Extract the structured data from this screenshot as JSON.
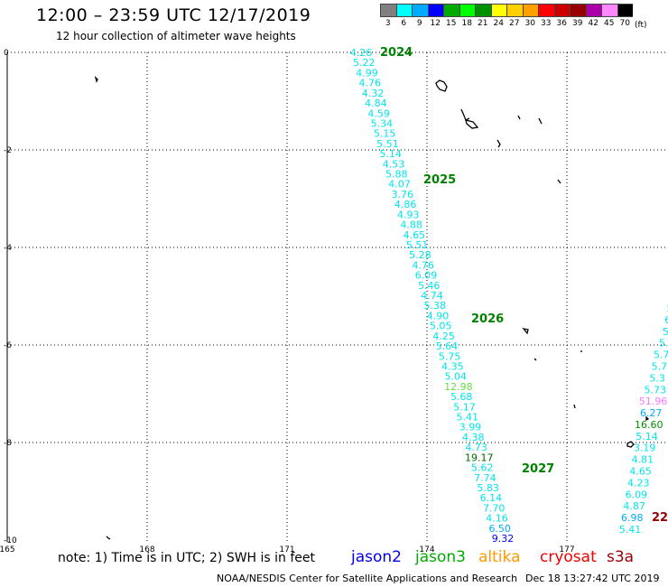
{
  "header": {
    "title": "12:00 – 23:59 UTC 12/17/2019",
    "subtitle": "12 hour collection of altimeter wave heights"
  },
  "legend": {
    "colors": [
      "#808080",
      "#00ffff",
      "#00aaff",
      "#0000ff",
      "#00aa00",
      "#00ff00",
      "#009000",
      "#ffff00",
      "#ffd000",
      "#ffa000",
      "#ff0000",
      "#cc0000",
      "#990000",
      "#aa00aa",
      "#ff88ff",
      "#000000"
    ],
    "labels": [
      "3",
      "6",
      "9",
      "12",
      "15",
      "18",
      "21",
      "24",
      "27",
      "30",
      "33",
      "36",
      "39",
      "42",
      "45",
      "70"
    ],
    "unit": "(ft)"
  },
  "axes": {
    "x_ticks": [
      "165",
      "168",
      "171",
      "174",
      "177"
    ],
    "y_ticks": [
      "0",
      "-2",
      "-4",
      "-6",
      "-8",
      "-10"
    ]
  },
  "tracks": {
    "main_values": [
      "4.26",
      "5.22",
      "4.99",
      "4.76",
      "4.32",
      "4.84",
      "4.59",
      "5.34",
      "5.15",
      "5.51",
      "5.14",
      "4.53",
      "5.88",
      "4.07",
      "3.76",
      "4.86",
      "4.93",
      "4.88",
      "4.65",
      "5.51",
      "5.28",
      "4.76",
      "6.09",
      "5.46",
      "4.74",
      "5.38",
      "4.90",
      "5.05",
      "4.25",
      "5.64",
      "5.75",
      "4.35",
      "5.04",
      "12.98",
      "5.68",
      "5.17",
      "5.41",
      "3.99",
      "4.38",
      "4.73",
      "19.17",
      "5.62",
      "7.74",
      "5.83",
      "6.14",
      "7.70",
      "4.16",
      "6.50",
      "9.32"
    ],
    "main_colors": [
      "#00e5ee",
      "#00e5ee",
      "#00e5ee",
      "#00e5ee",
      "#00e5ee",
      "#00e5ee",
      "#00e5ee",
      "#00e5ee",
      "#00e5ee",
      "#00e5ee",
      "#00e5ee",
      "#00e5ee",
      "#00e5ee",
      "#00e5ee",
      "#00e5ee",
      "#00e5ee",
      "#00e5ee",
      "#00e5ee",
      "#00e5ee",
      "#00e5ee",
      "#00e5ee",
      "#00e5ee",
      "#00e5ee",
      "#00e5ee",
      "#00e5ee",
      "#00e5ee",
      "#00e5ee",
      "#00e5ee",
      "#00e5ee",
      "#00e5ee",
      "#00e5ee",
      "#00e5ee",
      "#00e5ee",
      "#66dd44",
      "#00e5ee",
      "#00e5ee",
      "#00e5ee",
      "#00e5ee",
      "#00e5ee",
      "#00e5ee",
      "#006600",
      "#00e5ee",
      "#00e5ee",
      "#00e5ee",
      "#00e5ee",
      "#00e5ee",
      "#00e5ee",
      "#00aaff",
      "#0000ff"
    ],
    "main_hours": [
      "2024",
      "2025",
      "2026",
      "2027"
    ],
    "right_values": [
      "5",
      "6",
      "5",
      "5.",
      "5.7",
      "5.7",
      "5.3",
      "5.73",
      "51.96",
      "6.27",
      "16.60",
      "5.14",
      "3.19",
      "4.81",
      "4.65",
      "4.23",
      "6.09",
      "4.87",
      "6.98",
      "5.41"
    ],
    "right_colors": [
      "#00e5ee",
      "#00e5ee",
      "#00e5ee",
      "#00e5ee",
      "#00e5ee",
      "#00e5ee",
      "#00e5ee",
      "#00e5ee",
      "#ff77ff",
      "#00aaff",
      "#009000",
      "#00e5ee",
      "#00e5ee",
      "#00e5ee",
      "#00e5ee",
      "#00e5ee",
      "#00e5ee",
      "#00e5ee",
      "#00aaff",
      "#00e5ee"
    ],
    "right_hour": "22",
    "hour_color": "#008000",
    "right_hour_color": "#990000"
  },
  "footer": {
    "note": "note: 1) Time is in UTC; 2) SWH is in feet",
    "satellites": [
      {
        "name": "jason2",
        "color": "#0000ee"
      },
      {
        "name": "jason3",
        "color": "#00aa00"
      },
      {
        "name": "altika",
        "color": "#ff9900"
      },
      {
        "name": "cryosat",
        "color": "#ee0000"
      },
      {
        "name": "s3a",
        "color": "#990000"
      }
    ],
    "credit": "NOAA/NESDIS Center for Satellite Applications and Research",
    "timestamp": "Dec 18 13:27:42 UTC 2019"
  }
}
